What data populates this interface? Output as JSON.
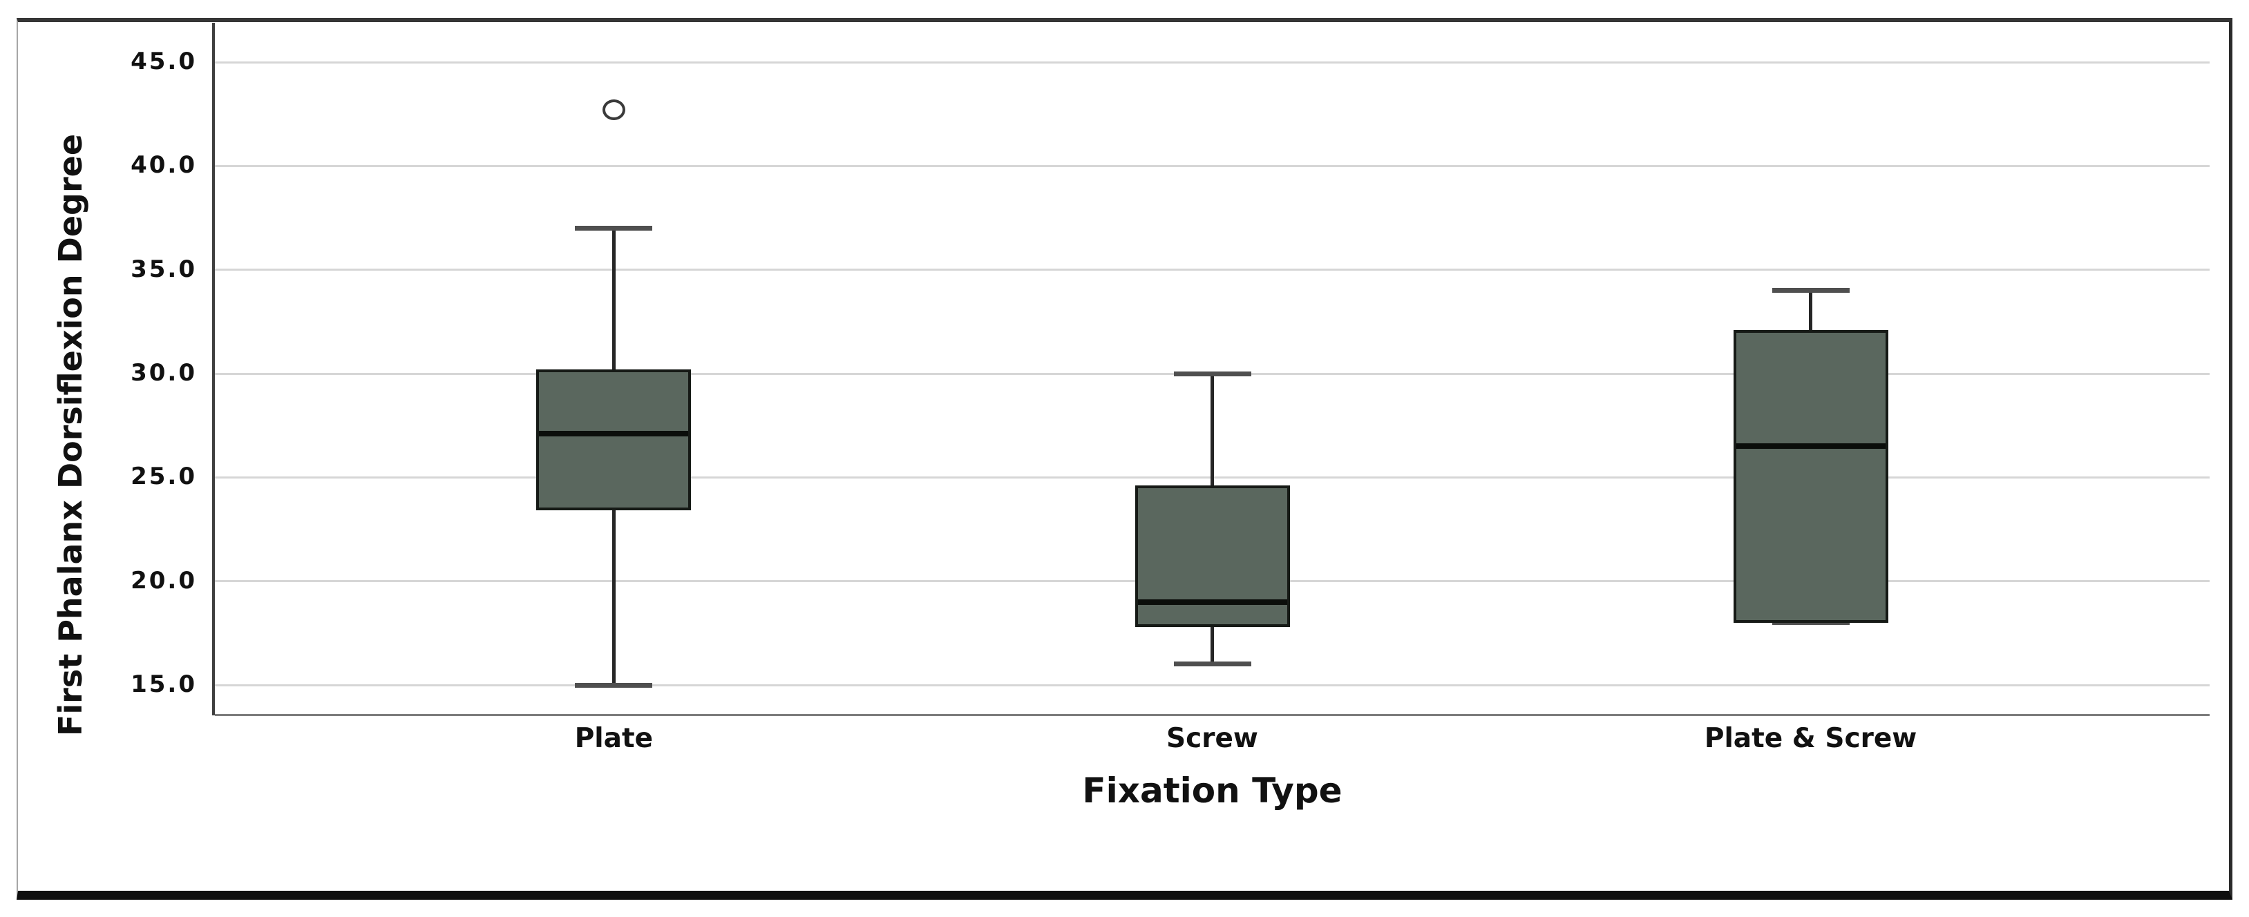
{
  "figure": {
    "background": "#ffffff"
  },
  "chart_data": {
    "type": "boxplot",
    "title": "",
    "xlabel": "Fixation Type",
    "ylabel": "First Phalanx Dorsiflexion Degree",
    "categories": [
      "Plate",
      "Screw",
      "Plate & Screw"
    ],
    "y_ticks": [
      15.0,
      20.0,
      25.0,
      30.0,
      35.0,
      40.0,
      45.0
    ],
    "y_tick_labels": [
      "15.0",
      "20.0",
      "25.0",
      "30.0",
      "35.0",
      "40.0",
      "45.0"
    ],
    "ylim": [
      13.4,
      46.9
    ],
    "grid": "horizontal",
    "legend": "none",
    "series": [
      {
        "category": "Plate",
        "whisker_low": 15.0,
        "q1": 23.4,
        "median": 27.1,
        "q3": 30.2,
        "whisker_high": 37.0,
        "outliers": [
          42.7
        ]
      },
      {
        "category": "Screw",
        "whisker_low": 16.0,
        "q1": 17.8,
        "median": 19.0,
        "q3": 24.6,
        "whisker_high": 30.0,
        "outliers": []
      },
      {
        "category": "Plate & Screw",
        "whisker_low": 18.0,
        "q1": 18.0,
        "median": 26.5,
        "q3": 32.1,
        "whisker_high": 34.0,
        "outliers": []
      }
    ],
    "colors": {
      "box_fill": "#5a675e",
      "box_border": "#161a16",
      "median_line": "#0b0e0b",
      "whisker": "#262626",
      "cap": "#4f4f4f",
      "gridline": "#d6d6d6",
      "axis_line": "#3f3f3f",
      "baseline": "#7d7d7d",
      "outlier_stroke": "#3a3a3a",
      "text": "#111111"
    }
  }
}
